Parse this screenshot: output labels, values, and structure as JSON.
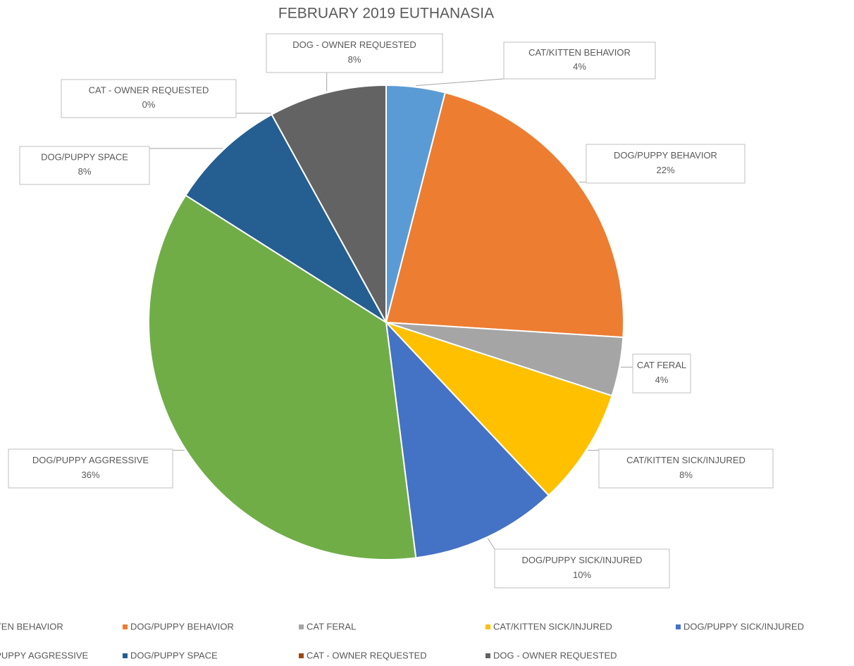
{
  "chart_data": {
    "type": "pie",
    "title": "FEBRUARY 2019 EUTHANASIA",
    "categories": [
      "CAT/KITTEN BEHAVIOR",
      "DOG/PUPPY BEHAVIOR",
      "CAT FERAL",
      "CAT/KITTEN SICK/INJURED",
      "DOG/PUPPY SICK/INJURED",
      "DOG/PUPPY AGGRESSIVE",
      "DOG/PUPPY SPACE",
      "CAT - OWNER REQUESTED",
      "DOG - OWNER REQUESTED"
    ],
    "values": [
      4,
      22,
      4,
      8,
      10,
      36,
      8,
      0,
      8
    ],
    "value_labels": [
      "4%",
      "22%",
      "4%",
      "8%",
      "10%",
      "36%",
      "8%",
      "0%",
      "8%"
    ],
    "colors": [
      "#5b9bd5",
      "#ed7d31",
      "#a5a5a5",
      "#ffc000",
      "#4472c4",
      "#70ad47",
      "#255e91",
      "#9e480e",
      "#636363"
    ],
    "legend": "bottom"
  }
}
